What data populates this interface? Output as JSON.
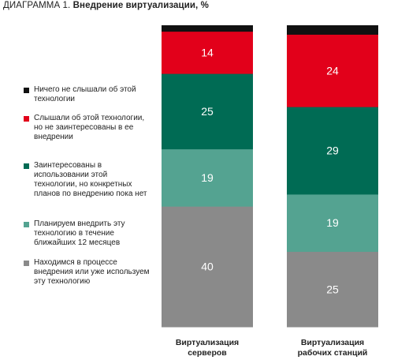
{
  "title_prefix": "ДИАГРАММА 1.",
  "title_main": "Внедрение виртуализации, %",
  "legend": [
    {
      "color": "#111111",
      "label": "Ничего не слышали об этой технологии"
    },
    {
      "color": "#e2001a",
      "label": "Слышали об этой технологии, но не заинтересованы в ее внедрении"
    },
    {
      "color": "#006b54",
      "label": "Заинтересованы в использовании этой технологии, но конкретных планов по внедрению пока нет"
    },
    {
      "color": "#54a391",
      "label": "Планируем внедрить эту технологию в течение ближайших 12 месяцев"
    },
    {
      "color": "#8a8a8a",
      "label": "Находимся в процессе внедрения или уже используем эту технологию"
    }
  ],
  "chart_data": {
    "type": "bar",
    "stacked": true,
    "unit": "%",
    "categories": [
      "Виртуализация серверов",
      "Виртуализация рабочих станций"
    ],
    "category_lines": [
      [
        "Виртуализация",
        "серверов"
      ],
      [
        "Виртуализация",
        "рабочих станций"
      ]
    ],
    "series": [
      {
        "name": "Находимся в процессе внедрения или уже используем эту технологию",
        "color": "#8a8a8a",
        "values": [
          40,
          25
        ]
      },
      {
        "name": "Планируем внедрить эту технологию в течение ближайших 12 месяцев",
        "color": "#54a391",
        "values": [
          19,
          19
        ]
      },
      {
        "name": "Заинтересованы в использовании этой технологии, но конкретных планов по внедрению пока нет",
        "color": "#006b54",
        "values": [
          25,
          29
        ]
      },
      {
        "name": "Слышали об этой технологии, но не заинтересованы в ее внедрении",
        "color": "#e2001a",
        "values": [
          14,
          24
        ]
      },
      {
        "name": "Ничего не слышали об этой технологии",
        "color": "#111111",
        "values": [
          2,
          3
        ]
      }
    ],
    "ylim": [
      0,
      100
    ],
    "grid": false,
    "legend_position": "left"
  }
}
